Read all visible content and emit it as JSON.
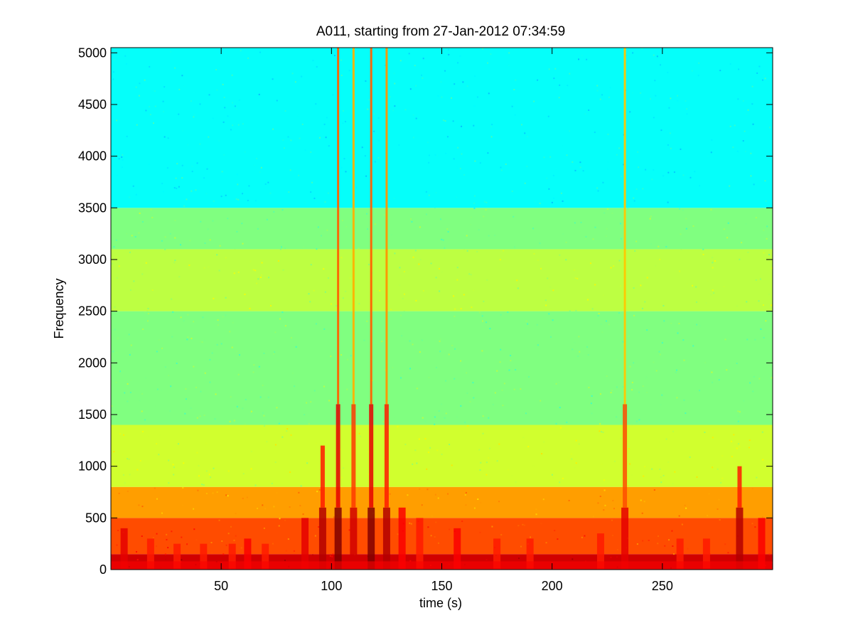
{
  "chart_data": {
    "type": "heatmap",
    "subtype": "spectrogram",
    "title": "A011, starting from 27-Jan-2012 07:34:59",
    "xlabel": "time (s)",
    "ylabel": "Frequency",
    "xlim": [
      0,
      300
    ],
    "ylim": [
      0,
      5050
    ],
    "xticks": [
      50,
      100,
      150,
      200,
      250
    ],
    "yticks": [
      0,
      500,
      1000,
      1500,
      2000,
      2500,
      3000,
      3500,
      4000,
      4500,
      5000
    ],
    "grid": false,
    "colormap": "jet",
    "colors": {
      "background_level": "#2ee6c8",
      "mid_band": "#7cf280",
      "low_band": "#f2f020",
      "high_energy": "#e81e10"
    },
    "bands": [
      {
        "f_low": 0,
        "f_high": 150,
        "level": 0.92
      },
      {
        "f_low": 150,
        "f_high": 500,
        "level": 0.8
      },
      {
        "f_low": 500,
        "f_high": 800,
        "level": 0.72
      },
      {
        "f_low": 800,
        "f_high": 1400,
        "level": 0.58
      },
      {
        "f_low": 1400,
        "f_high": 2500,
        "level": 0.5
      },
      {
        "f_low": 2500,
        "f_high": 3100,
        "level": 0.56
      },
      {
        "f_low": 3100,
        "f_high": 3500,
        "level": 0.5
      },
      {
        "f_low": 3500,
        "f_high": 5050,
        "level": 0.38
      }
    ],
    "events": [
      {
        "t": 6,
        "f_max": 400,
        "level": 0.9
      },
      {
        "t": 18,
        "f_max": 300,
        "level": 0.85
      },
      {
        "t": 30,
        "f_max": 250,
        "level": 0.85
      },
      {
        "t": 42,
        "f_max": 250,
        "level": 0.85
      },
      {
        "t": 55,
        "f_max": 250,
        "level": 0.85
      },
      {
        "t": 62,
        "f_max": 300,
        "level": 0.88
      },
      {
        "t": 70,
        "f_max": 250,
        "level": 0.85
      },
      {
        "t": 88,
        "f_max": 500,
        "level": 0.9
      },
      {
        "t": 96,
        "f_max": 1200,
        "level": 0.95
      },
      {
        "t": 103,
        "f_max": 5050,
        "level": 1.0
      },
      {
        "t": 110,
        "f_max": 5050,
        "level": 0.92
      },
      {
        "t": 118,
        "f_max": 5050,
        "level": 1.0
      },
      {
        "t": 125,
        "f_max": 5050,
        "level": 0.95
      },
      {
        "t": 132,
        "f_max": 600,
        "level": 0.88
      },
      {
        "t": 140,
        "f_max": 500,
        "level": 0.85
      },
      {
        "t": 157,
        "f_max": 400,
        "level": 0.88
      },
      {
        "t": 175,
        "f_max": 300,
        "level": 0.85
      },
      {
        "t": 190,
        "f_max": 300,
        "level": 0.85
      },
      {
        "t": 222,
        "f_max": 350,
        "level": 0.85
      },
      {
        "t": 233,
        "f_max": 5050,
        "level": 0.9
      },
      {
        "t": 258,
        "f_max": 300,
        "level": 0.85
      },
      {
        "t": 270,
        "f_max": 300,
        "level": 0.85
      },
      {
        "t": 285,
        "f_max": 1000,
        "level": 0.95
      },
      {
        "t": 295,
        "f_max": 500,
        "level": 0.88
      }
    ]
  }
}
